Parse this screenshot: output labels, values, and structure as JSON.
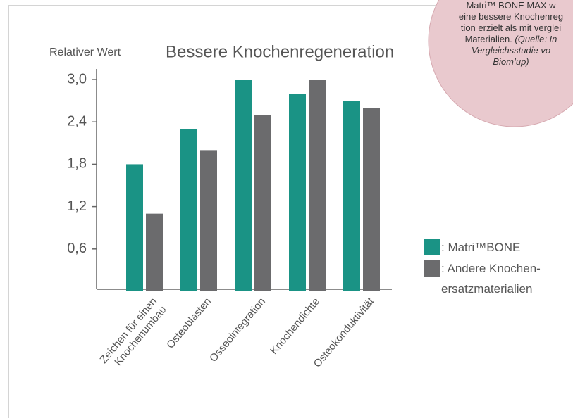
{
  "chart_data": {
    "type": "bar",
    "title": "Bessere Knochenregeneration",
    "ylabel": "Relativer Wert",
    "categories": [
      "Zeichen für einen\nKnochenumbau",
      "Osteoblasten",
      "Osseointegration",
      "Knochendichte",
      "Osteokonduktivität"
    ],
    "series": [
      {
        "name": ": Matri™BONE",
        "color": "#1a9385",
        "values": [
          1.8,
          2.3,
          3.0,
          2.8,
          2.7
        ]
      },
      {
        "name": ": Andere Knochen-\nersatzmaterialien",
        "color": "#6b6b6d",
        "values": [
          1.1,
          2.0,
          2.5,
          3.0,
          2.6
        ]
      }
    ],
    "ylim": [
      0,
      3.15
    ],
    "yticks": [
      {
        "value": 0.6,
        "label": "0,6"
      },
      {
        "value": 1.2,
        "label": "1,2"
      },
      {
        "value": 1.8,
        "label": "1,8"
      },
      {
        "value": 2.4,
        "label": "2,4"
      },
      {
        "value": 3.0,
        "label": "3,0"
      }
    ],
    "grid": false,
    "legend": "right"
  },
  "note": {
    "lines": [
      "Matri™ BONE MAX w",
      "eine bessere Knochenreg",
      "tion erzielt als mit verglei",
      "Materialien."
    ],
    "source_lines": [
      "(Quelle: In",
      "Vergleichsstudie vo",
      "Biom’up)"
    ]
  }
}
